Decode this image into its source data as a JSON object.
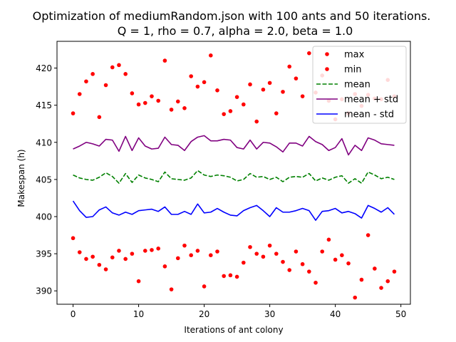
{
  "chart_data": {
    "type": "line",
    "title_line1": "Optimization of mediumRandom.json with 100 ants and 50 iterations.",
    "title_line2": "Q = 1, rho = 0.7, alpha = 2.0, beta = 1.0",
    "xlabel": "Iterations of ant colony",
    "ylabel": "Makespan (h)",
    "xlim": [
      -2.45,
      51.45
    ],
    "ylim": [
      388.2,
      423.6
    ],
    "xticks": [
      0,
      10,
      20,
      30,
      40,
      50
    ],
    "yticks": [
      390,
      395,
      400,
      405,
      410,
      415,
      420
    ],
    "legend_position": "upper-right",
    "x": [
      0,
      1,
      2,
      3,
      4,
      5,
      6,
      7,
      8,
      9,
      10,
      11,
      12,
      13,
      14,
      15,
      16,
      17,
      18,
      19,
      20,
      21,
      22,
      23,
      24,
      25,
      26,
      27,
      28,
      29,
      30,
      31,
      32,
      33,
      34,
      35,
      36,
      37,
      38,
      39,
      40,
      41,
      42,
      43,
      44,
      45,
      46,
      47,
      48,
      49
    ],
    "series": [
      {
        "name": "max",
        "style": "points",
        "color": "#ff0000",
        "values": [
          413.9,
          416.5,
          418.2,
          419.2,
          413.4,
          417.7,
          420.1,
          420.4,
          419.2,
          416.6,
          415.1,
          415.3,
          416.2,
          415.6,
          421.0,
          414.4,
          415.5,
          414.6,
          418.9,
          417.5,
          418.1,
          421.7,
          417.0,
          413.8,
          414.2,
          416.1,
          415.1,
          417.8,
          412.8,
          417.1,
          418.0,
          413.9,
          416.8,
          420.2,
          418.6,
          416.2,
          422.0,
          416.7,
          419.0,
          415.6,
          413.1,
          415.8,
          413.9,
          416.5,
          414.9,
          416.4,
          415.9,
          415.8,
          418.4,
          416.2
        ]
      },
      {
        "name": "min",
        "style": "points",
        "color": "#ff0000",
        "values": [
          397.1,
          395.2,
          394.3,
          394.6,
          393.5,
          392.9,
          394.5,
          395.4,
          394.3,
          395.0,
          391.3,
          395.4,
          395.5,
          395.7,
          393.3,
          390.2,
          394.4,
          396.1,
          394.8,
          395.4,
          390.6,
          394.8,
          395.3,
          392.0,
          392.1,
          391.9,
          393.8,
          395.9,
          395.0,
          394.6,
          396.1,
          395.0,
          393.9,
          392.8,
          395.3,
          393.6,
          392.6,
          391.1,
          395.3,
          396.9,
          394.2,
          394.8,
          393.7,
          389.1,
          391.5,
          397.5,
          393.0,
          390.4,
          391.3,
          392.6
        ]
      },
      {
        "name": "mean",
        "style": "dashed",
        "color": "#008000",
        "values": [
          405.6,
          405.2,
          405.0,
          404.9,
          405.3,
          405.9,
          405.4,
          404.5,
          405.8,
          404.6,
          405.6,
          405.2,
          405.0,
          404.7,
          406.0,
          405.1,
          405.0,
          404.9,
          405.2,
          406.2,
          405.6,
          405.4,
          405.6,
          405.5,
          405.3,
          404.8,
          405.0,
          405.8,
          405.3,
          405.4,
          405.0,
          405.3,
          404.7,
          405.3,
          405.4,
          405.3,
          405.8,
          404.8,
          405.2,
          404.9,
          405.3,
          405.5,
          404.5,
          405.1,
          404.5,
          406.0,
          405.6,
          405.1,
          405.3,
          405.0
        ]
      },
      {
        "name": "mean + std",
        "style": "solid",
        "color": "#800080",
        "values": [
          409.1,
          409.5,
          410.0,
          409.8,
          409.5,
          410.4,
          410.3,
          408.8,
          410.8,
          408.9,
          410.6,
          409.5,
          409.1,
          409.2,
          410.7,
          409.7,
          409.6,
          408.9,
          410.1,
          410.7,
          410.9,
          410.2,
          410.2,
          410.4,
          410.3,
          409.3,
          409.1,
          410.3,
          409.1,
          410.0,
          409.9,
          409.4,
          408.7,
          409.9,
          409.9,
          409.5,
          410.8,
          410.1,
          409.7,
          408.9,
          409.3,
          410.5,
          408.3,
          409.6,
          408.9,
          410.6,
          410.3,
          409.8,
          409.7,
          409.6
        ]
      },
      {
        "name": "mean - std",
        "style": "solid",
        "color": "#0000ff",
        "values": [
          402.1,
          400.8,
          399.9,
          400.0,
          400.9,
          401.3,
          400.5,
          400.2,
          400.6,
          400.3,
          400.8,
          400.9,
          401.0,
          400.7,
          401.3,
          400.3,
          400.3,
          400.7,
          400.3,
          401.7,
          400.5,
          400.6,
          401.1,
          400.6,
          400.2,
          400.1,
          400.8,
          401.2,
          401.5,
          400.8,
          400.0,
          401.2,
          400.6,
          400.6,
          400.8,
          401.1,
          400.8,
          399.5,
          400.7,
          400.8,
          401.1,
          400.5,
          400.7,
          400.4,
          399.8,
          401.5,
          401.1,
          400.6,
          401.2,
          400.3
        ]
      }
    ]
  }
}
